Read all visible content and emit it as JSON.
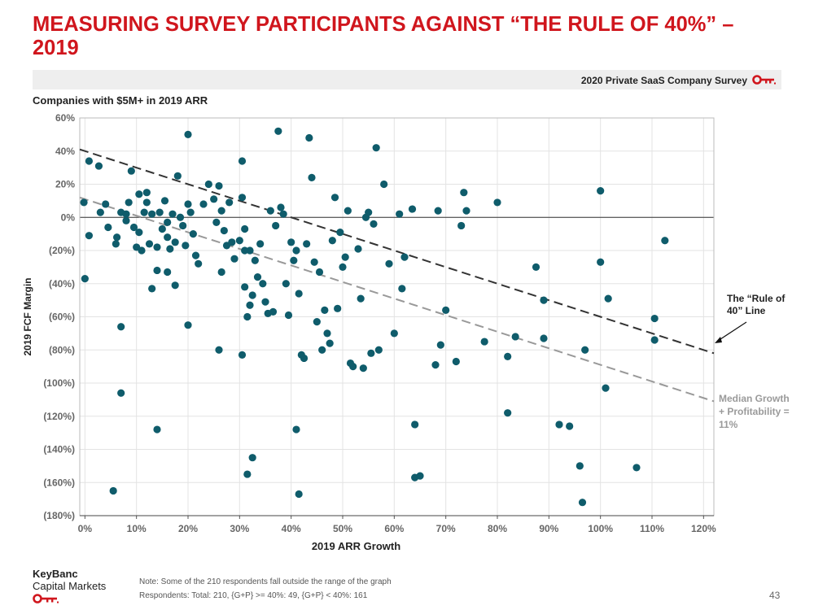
{
  "page": {
    "title": "MEASURING SURVEY PARTICIPANTS AGAINST “THE RULE OF 40%” – 2019",
    "survey_label": "2020 Private SaaS Company Survey",
    "subtitle": "Companies with $5M+ in 2019 ARR",
    "brand_line1": "KeyBanc",
    "brand_line2": "Capital Markets",
    "note_line1": "Note: Some of the 210 respondents fall outside the range of the graph",
    "note_line2": "Respondents: Total: 210, {G+P} >= 40%: 49, {G+P} < 40%: 161",
    "page_number": "43"
  },
  "colors": {
    "title": "#d0161d",
    "brand_red": "#d0161d",
    "point": "#0f5c6b",
    "rule_of_40_line": "#333333",
    "median_line": "#999999",
    "zero_line": "#333333",
    "grid": "#e3e3e3"
  },
  "icons": {
    "brand": "key-icon"
  },
  "chart_data": {
    "type": "scatter",
    "xlabel": "2019 ARR Growth",
    "ylabel": "2019 FCF Margin",
    "xlim": [
      -0.01,
      1.22
    ],
    "ylim": [
      -1.8,
      0.6
    ],
    "grid": true,
    "x_ticks": [
      {
        "value": 0.0,
        "label": "0%"
      },
      {
        "value": 0.1,
        "label": "10%"
      },
      {
        "value": 0.2,
        "label": "20%"
      },
      {
        "value": 0.3,
        "label": "30%"
      },
      {
        "value": 0.4,
        "label": "40%"
      },
      {
        "value": 0.5,
        "label": "50%"
      },
      {
        "value": 0.6,
        "label": "60%"
      },
      {
        "value": 0.7,
        "label": "70%"
      },
      {
        "value": 0.8,
        "label": "80%"
      },
      {
        "value": 0.9,
        "label": "90%"
      },
      {
        "value": 1.0,
        "label": "100%"
      },
      {
        "value": 1.1,
        "label": "110%"
      },
      {
        "value": 1.2,
        "label": "120%"
      }
    ],
    "y_ticks": [
      {
        "value": 0.6,
        "label": "60%"
      },
      {
        "value": 0.4,
        "label": "40%"
      },
      {
        "value": 0.2,
        "label": "20%"
      },
      {
        "value": 0.0,
        "label": "0%"
      },
      {
        "value": -0.2,
        "label": "(20%)"
      },
      {
        "value": -0.4,
        "label": "(40%)"
      },
      {
        "value": -0.6,
        "label": "(60%)"
      },
      {
        "value": -0.8,
        "label": "(80%)"
      },
      {
        "value": -1.0,
        "label": "(100%)"
      },
      {
        "value": -1.2,
        "label": "(120%)"
      },
      {
        "value": -1.4,
        "label": "(140%)"
      },
      {
        "value": -1.6,
        "label": "(160%)"
      },
      {
        "value": -1.8,
        "label": "(180%)"
      }
    ],
    "reference_lines": [
      {
        "name": "rule-of-40",
        "label": "The “Rule of 40” Line",
        "label_lines": [
          "The “Rule of",
          "40” Line"
        ],
        "from": [
          -0.01,
          0.41
        ],
        "to": [
          1.22,
          -0.82
        ],
        "dash": "dark"
      },
      {
        "name": "median",
        "label": "Median Growth + Profitability = 11%",
        "label_lines": [
          "Median Growth",
          "+ Profitability =",
          "11%"
        ],
        "from": [
          -0.01,
          0.12
        ],
        "to": [
          1.22,
          -1.11
        ],
        "dash": "light"
      }
    ],
    "points": [
      [
        -0.002,
        0.09
      ],
      [
        0.008,
        0.34
      ],
      [
        0.008,
        -0.11
      ],
      [
        0.0,
        -0.37
      ],
      [
        0.027,
        0.31
      ],
      [
        0.03,
        0.03
      ],
      [
        0.04,
        0.08
      ],
      [
        0.045,
        -0.06
      ],
      [
        0.06,
        -0.16
      ],
      [
        0.062,
        -0.12
      ],
      [
        0.07,
        0.03
      ],
      [
        0.08,
        0.02
      ],
      [
        0.08,
        -0.02
      ],
      [
        0.085,
        0.09
      ],
      [
        0.09,
        0.28
      ],
      [
        0.095,
        -0.06
      ],
      [
        0.1,
        -0.18
      ],
      [
        0.105,
        0.14
      ],
      [
        0.105,
        -0.09
      ],
      [
        0.11,
        -0.2
      ],
      [
        0.115,
        0.03
      ],
      [
        0.12,
        0.15
      ],
      [
        0.12,
        0.09
      ],
      [
        0.125,
        -0.16
      ],
      [
        0.13,
        0.02
      ],
      [
        0.14,
        -0.18
      ],
      [
        0.145,
        0.03
      ],
      [
        0.15,
        -0.07
      ],
      [
        0.155,
        0.1
      ],
      [
        0.16,
        -0.03
      ],
      [
        0.16,
        -0.12
      ],
      [
        0.165,
        -0.19
      ],
      [
        0.17,
        0.02
      ],
      [
        0.175,
        -0.15
      ],
      [
        0.18,
        0.25
      ],
      [
        0.185,
        0.0
      ],
      [
        0.19,
        -0.05
      ],
      [
        0.195,
        -0.17
      ],
      [
        0.2,
        0.08
      ],
      [
        0.205,
        0.03
      ],
      [
        0.21,
        -0.1
      ],
      [
        0.215,
        -0.23
      ],
      [
        0.22,
        -0.28
      ],
      [
        0.23,
        0.08
      ],
      [
        0.24,
        0.2
      ],
      [
        0.25,
        0.11
      ],
      [
        0.255,
        -0.03
      ],
      [
        0.26,
        0.19
      ],
      [
        0.265,
        0.04
      ],
      [
        0.27,
        -0.08
      ],
      [
        0.275,
        -0.17
      ],
      [
        0.28,
        0.09
      ],
      [
        0.285,
        -0.15
      ],
      [
        0.29,
        -0.25
      ],
      [
        0.3,
        -0.14
      ],
      [
        0.14,
        -0.32
      ],
      [
        0.13,
        -0.43
      ],
      [
        0.16,
        -0.33
      ],
      [
        0.175,
        -0.41
      ],
      [
        0.2,
        0.5
      ],
      [
        0.2,
        -0.65
      ],
      [
        0.26,
        -0.8
      ],
      [
        0.265,
        -0.33
      ],
      [
        0.07,
        -0.66
      ],
      [
        0.07,
        -1.06
      ],
      [
        0.14,
        -1.28
      ],
      [
        0.055,
        -1.65
      ],
      [
        0.305,
        0.34
      ],
      [
        0.305,
        0.12
      ],
      [
        0.31,
        -0.42
      ],
      [
        0.31,
        -0.07
      ],
      [
        0.315,
        -0.6
      ],
      [
        0.32,
        -0.2
      ],
      [
        0.32,
        -0.53
      ],
      [
        0.325,
        -0.47
      ],
      [
        0.33,
        -0.26
      ],
      [
        0.335,
        -0.36
      ],
      [
        0.34,
        -0.16
      ],
      [
        0.345,
        -0.4
      ],
      [
        0.35,
        -0.51
      ],
      [
        0.355,
        -0.58
      ],
      [
        0.36,
        0.04
      ],
      [
        0.365,
        -0.57
      ],
      [
        0.37,
        -0.05
      ],
      [
        0.375,
        0.52
      ],
      [
        0.38,
        0.06
      ],
      [
        0.385,
        0.02
      ],
      [
        0.39,
        -0.4
      ],
      [
        0.395,
        -0.59
      ],
      [
        0.4,
        -0.15
      ],
      [
        0.405,
        -0.26
      ],
      [
        0.41,
        -0.2
      ],
      [
        0.415,
        -0.46
      ],
      [
        0.42,
        -0.83
      ],
      [
        0.425,
        -0.85
      ],
      [
        0.43,
        -0.16
      ],
      [
        0.435,
        0.48
      ],
      [
        0.44,
        0.24
      ],
      [
        0.445,
        -0.27
      ],
      [
        0.45,
        -0.63
      ],
      [
        0.455,
        -0.33
      ],
      [
        0.46,
        -0.8
      ],
      [
        0.465,
        -0.56
      ],
      [
        0.47,
        -0.7
      ],
      [
        0.475,
        -0.76
      ],
      [
        0.48,
        -0.14
      ],
      [
        0.485,
        0.12
      ],
      [
        0.49,
        -0.55
      ],
      [
        0.495,
        -0.09
      ],
      [
        0.5,
        -0.3
      ],
      [
        0.505,
        -0.24
      ],
      [
        0.51,
        0.04
      ],
      [
        0.515,
        -0.88
      ],
      [
        0.52,
        -0.9
      ],
      [
        0.53,
        -0.19
      ],
      [
        0.535,
        -0.49
      ],
      [
        0.54,
        -0.91
      ],
      [
        0.545,
        0.0
      ],
      [
        0.55,
        0.03
      ],
      [
        0.555,
        -0.82
      ],
      [
        0.56,
        -0.04
      ],
      [
        0.565,
        0.42
      ],
      [
        0.57,
        -0.8
      ],
      [
        0.58,
        0.2
      ],
      [
        0.59,
        -0.28
      ],
      [
        0.6,
        -0.7
      ],
      [
        0.61,
        0.02
      ],
      [
        0.615,
        -0.43
      ],
      [
        0.62,
        -0.24
      ],
      [
        0.635,
        0.05
      ],
      [
        0.64,
        -1.25
      ],
      [
        0.64,
        -1.57
      ],
      [
        0.65,
        -1.56
      ],
      [
        0.68,
        -0.89
      ],
      [
        0.685,
        0.04
      ],
      [
        0.69,
        -0.77
      ],
      [
        0.7,
        -0.56
      ],
      [
        0.72,
        -0.87
      ],
      [
        0.73,
        -0.05
      ],
      [
        0.735,
        0.15
      ],
      [
        0.74,
        0.04
      ],
      [
        0.775,
        -0.75
      ],
      [
        0.8,
        0.09
      ],
      [
        0.82,
        -0.84
      ],
      [
        0.82,
        -1.18
      ],
      [
        0.835,
        -0.72
      ],
      [
        0.875,
        -0.3
      ],
      [
        0.89,
        -0.5
      ],
      [
        0.89,
        -0.73
      ],
      [
        0.92,
        -1.25
      ],
      [
        0.94,
        -1.26
      ],
      [
        0.96,
        -1.5
      ],
      [
        0.965,
        -1.72
      ],
      [
        0.97,
        -0.8
      ],
      [
        1.0,
        0.16
      ],
      [
        1.0,
        -0.27
      ],
      [
        1.01,
        -1.03
      ],
      [
        1.015,
        -0.49
      ],
      [
        1.07,
        -1.51
      ],
      [
        1.105,
        -0.61
      ],
      [
        1.105,
        -0.74
      ],
      [
        1.125,
        -0.14
      ],
      [
        0.41,
        -1.28
      ],
      [
        0.415,
        -1.67
      ],
      [
        0.315,
        -1.55
      ],
      [
        0.325,
        -1.45
      ],
      [
        0.305,
        -0.83
      ],
      [
        0.31,
        -0.2
      ]
    ]
  }
}
